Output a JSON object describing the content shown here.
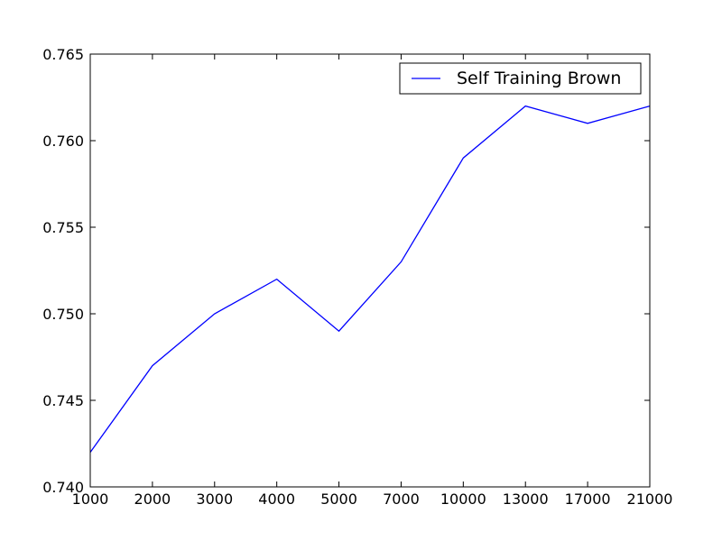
{
  "chart_data": {
    "type": "line",
    "title": "",
    "xlabel": "",
    "ylabel": "",
    "categories": [
      "1000",
      "2000",
      "3000",
      "4000",
      "5000",
      "7000",
      "10000",
      "13000",
      "17000",
      "21000"
    ],
    "series": [
      {
        "name": "Self Training Brown",
        "color": "#0000ff",
        "values": [
          0.742,
          0.747,
          0.75,
          0.752,
          0.749,
          0.753,
          0.759,
          0.762,
          0.761,
          0.762
        ]
      }
    ],
    "ylim": [
      0.74,
      0.765
    ],
    "yticks": [
      0.74,
      0.745,
      0.75,
      0.755,
      0.76,
      0.765
    ],
    "ytick_labels": [
      "0.740",
      "0.745",
      "0.750",
      "0.755",
      "0.760",
      "0.765"
    ],
    "grid": false,
    "legend_position": "top-right"
  }
}
